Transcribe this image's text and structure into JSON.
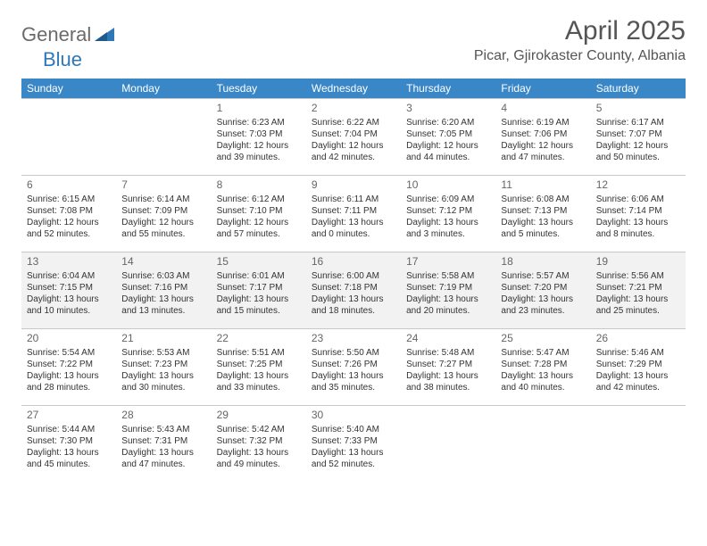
{
  "brand": {
    "part1": "General",
    "part2": "Blue"
  },
  "title": "April 2025",
  "location": "Picar, Gjirokaster County, Albania",
  "colors": {
    "header_bg": "#3a87c7",
    "header_text": "#ffffff",
    "shaded_row": "#f2f2f2",
    "border": "#c8c8c8",
    "title_color": "#555555",
    "brand_gray": "#6b6b6b",
    "brand_blue": "#2f78b7"
  },
  "weekdays": [
    "Sunday",
    "Monday",
    "Tuesday",
    "Wednesday",
    "Thursday",
    "Friday",
    "Saturday"
  ],
  "weeks": [
    {
      "shaded": false,
      "cells": [
        null,
        null,
        {
          "day": "1",
          "sunrise": "Sunrise: 6:23 AM",
          "sunset": "Sunset: 7:03 PM",
          "daylight1": "Daylight: 12 hours",
          "daylight2": "and 39 minutes."
        },
        {
          "day": "2",
          "sunrise": "Sunrise: 6:22 AM",
          "sunset": "Sunset: 7:04 PM",
          "daylight1": "Daylight: 12 hours",
          "daylight2": "and 42 minutes."
        },
        {
          "day": "3",
          "sunrise": "Sunrise: 6:20 AM",
          "sunset": "Sunset: 7:05 PM",
          "daylight1": "Daylight: 12 hours",
          "daylight2": "and 44 minutes."
        },
        {
          "day": "4",
          "sunrise": "Sunrise: 6:19 AM",
          "sunset": "Sunset: 7:06 PM",
          "daylight1": "Daylight: 12 hours",
          "daylight2": "and 47 minutes."
        },
        {
          "day": "5",
          "sunrise": "Sunrise: 6:17 AM",
          "sunset": "Sunset: 7:07 PM",
          "daylight1": "Daylight: 12 hours",
          "daylight2": "and 50 minutes."
        }
      ]
    },
    {
      "shaded": false,
      "cells": [
        {
          "day": "6",
          "sunrise": "Sunrise: 6:15 AM",
          "sunset": "Sunset: 7:08 PM",
          "daylight1": "Daylight: 12 hours",
          "daylight2": "and 52 minutes."
        },
        {
          "day": "7",
          "sunrise": "Sunrise: 6:14 AM",
          "sunset": "Sunset: 7:09 PM",
          "daylight1": "Daylight: 12 hours",
          "daylight2": "and 55 minutes."
        },
        {
          "day": "8",
          "sunrise": "Sunrise: 6:12 AM",
          "sunset": "Sunset: 7:10 PM",
          "daylight1": "Daylight: 12 hours",
          "daylight2": "and 57 minutes."
        },
        {
          "day": "9",
          "sunrise": "Sunrise: 6:11 AM",
          "sunset": "Sunset: 7:11 PM",
          "daylight1": "Daylight: 13 hours",
          "daylight2": "and 0 minutes."
        },
        {
          "day": "10",
          "sunrise": "Sunrise: 6:09 AM",
          "sunset": "Sunset: 7:12 PM",
          "daylight1": "Daylight: 13 hours",
          "daylight2": "and 3 minutes."
        },
        {
          "day": "11",
          "sunrise": "Sunrise: 6:08 AM",
          "sunset": "Sunset: 7:13 PM",
          "daylight1": "Daylight: 13 hours",
          "daylight2": "and 5 minutes."
        },
        {
          "day": "12",
          "sunrise": "Sunrise: 6:06 AM",
          "sunset": "Sunset: 7:14 PM",
          "daylight1": "Daylight: 13 hours",
          "daylight2": "and 8 minutes."
        }
      ]
    },
    {
      "shaded": true,
      "cells": [
        {
          "day": "13",
          "sunrise": "Sunrise: 6:04 AM",
          "sunset": "Sunset: 7:15 PM",
          "daylight1": "Daylight: 13 hours",
          "daylight2": "and 10 minutes."
        },
        {
          "day": "14",
          "sunrise": "Sunrise: 6:03 AM",
          "sunset": "Sunset: 7:16 PM",
          "daylight1": "Daylight: 13 hours",
          "daylight2": "and 13 minutes."
        },
        {
          "day": "15",
          "sunrise": "Sunrise: 6:01 AM",
          "sunset": "Sunset: 7:17 PM",
          "daylight1": "Daylight: 13 hours",
          "daylight2": "and 15 minutes."
        },
        {
          "day": "16",
          "sunrise": "Sunrise: 6:00 AM",
          "sunset": "Sunset: 7:18 PM",
          "daylight1": "Daylight: 13 hours",
          "daylight2": "and 18 minutes."
        },
        {
          "day": "17",
          "sunrise": "Sunrise: 5:58 AM",
          "sunset": "Sunset: 7:19 PM",
          "daylight1": "Daylight: 13 hours",
          "daylight2": "and 20 minutes."
        },
        {
          "day": "18",
          "sunrise": "Sunrise: 5:57 AM",
          "sunset": "Sunset: 7:20 PM",
          "daylight1": "Daylight: 13 hours",
          "daylight2": "and 23 minutes."
        },
        {
          "day": "19",
          "sunrise": "Sunrise: 5:56 AM",
          "sunset": "Sunset: 7:21 PM",
          "daylight1": "Daylight: 13 hours",
          "daylight2": "and 25 minutes."
        }
      ]
    },
    {
      "shaded": false,
      "cells": [
        {
          "day": "20",
          "sunrise": "Sunrise: 5:54 AM",
          "sunset": "Sunset: 7:22 PM",
          "daylight1": "Daylight: 13 hours",
          "daylight2": "and 28 minutes."
        },
        {
          "day": "21",
          "sunrise": "Sunrise: 5:53 AM",
          "sunset": "Sunset: 7:23 PM",
          "daylight1": "Daylight: 13 hours",
          "daylight2": "and 30 minutes."
        },
        {
          "day": "22",
          "sunrise": "Sunrise: 5:51 AM",
          "sunset": "Sunset: 7:25 PM",
          "daylight1": "Daylight: 13 hours",
          "daylight2": "and 33 minutes."
        },
        {
          "day": "23",
          "sunrise": "Sunrise: 5:50 AM",
          "sunset": "Sunset: 7:26 PM",
          "daylight1": "Daylight: 13 hours",
          "daylight2": "and 35 minutes."
        },
        {
          "day": "24",
          "sunrise": "Sunrise: 5:48 AM",
          "sunset": "Sunset: 7:27 PM",
          "daylight1": "Daylight: 13 hours",
          "daylight2": "and 38 minutes."
        },
        {
          "day": "25",
          "sunrise": "Sunrise: 5:47 AM",
          "sunset": "Sunset: 7:28 PM",
          "daylight1": "Daylight: 13 hours",
          "daylight2": "and 40 minutes."
        },
        {
          "day": "26",
          "sunrise": "Sunrise: 5:46 AM",
          "sunset": "Sunset: 7:29 PM",
          "daylight1": "Daylight: 13 hours",
          "daylight2": "and 42 minutes."
        }
      ]
    },
    {
      "shaded": false,
      "cells": [
        {
          "day": "27",
          "sunrise": "Sunrise: 5:44 AM",
          "sunset": "Sunset: 7:30 PM",
          "daylight1": "Daylight: 13 hours",
          "daylight2": "and 45 minutes."
        },
        {
          "day": "28",
          "sunrise": "Sunrise: 5:43 AM",
          "sunset": "Sunset: 7:31 PM",
          "daylight1": "Daylight: 13 hours",
          "daylight2": "and 47 minutes."
        },
        {
          "day": "29",
          "sunrise": "Sunrise: 5:42 AM",
          "sunset": "Sunset: 7:32 PM",
          "daylight1": "Daylight: 13 hours",
          "daylight2": "and 49 minutes."
        },
        {
          "day": "30",
          "sunrise": "Sunrise: 5:40 AM",
          "sunset": "Sunset: 7:33 PM",
          "daylight1": "Daylight: 13 hours",
          "daylight2": "and 52 minutes."
        },
        null,
        null,
        null
      ]
    }
  ]
}
